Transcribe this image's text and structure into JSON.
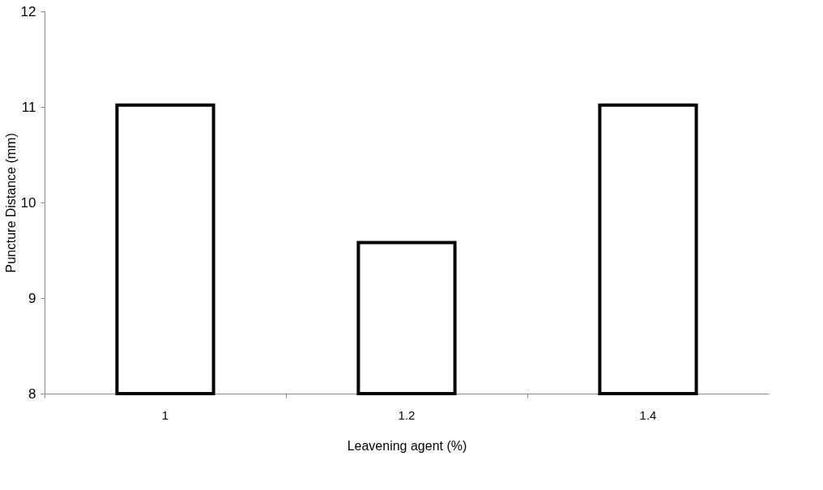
{
  "chart_data": {
    "type": "bar",
    "xlabel": "Leavening agent (%)",
    "ylabel": "Puncture Distance (mm)",
    "categories": [
      "1",
      "1.2",
      "1.4"
    ],
    "values": [
      11.02,
      9.58,
      11.02
    ],
    "color": "#ffffff",
    "ylim": [
      8,
      12
    ],
    "yticks": [
      8,
      9,
      10,
      11,
      12
    ],
    "grid": false
  }
}
